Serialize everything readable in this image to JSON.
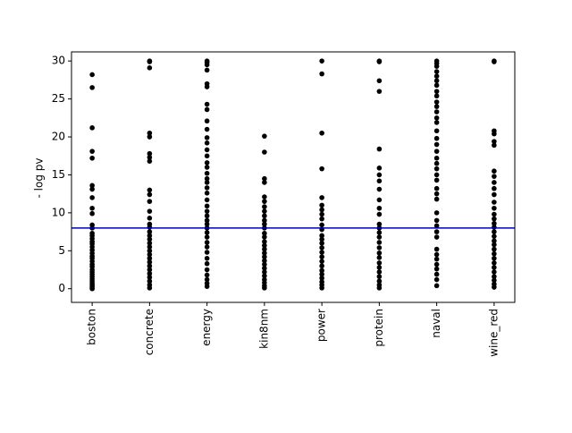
{
  "chart_data": {
    "type": "strip",
    "ylabel": "- log pv",
    "categories": [
      "boston",
      "concrete",
      "energy",
      "kin8nm",
      "power",
      "protein",
      "naval",
      "wine_red"
    ],
    "values": [
      [
        28.2,
        26.5,
        21.2,
        18.1,
        17.2,
        13.6,
        13.1,
        12.0,
        10.6,
        9.9,
        8.4,
        8.0,
        7.3,
        7.0,
        6.6,
        6.2,
        5.9,
        5.5,
        5.1,
        4.7,
        4.3,
        4.0,
        3.6,
        3.2,
        2.9,
        2.5,
        2.2,
        1.9,
        1.6,
        1.3,
        1.0,
        0.7,
        0.5,
        0.3,
        0.1,
        0.0
      ],
      [
        30,
        29.9,
        29.1,
        20.5,
        20.0,
        17.8,
        17.3,
        16.8,
        13.0,
        12.4,
        11.5,
        10.2,
        9.3,
        8.5,
        8.1,
        7.5,
        7.0,
        6.5,
        6.0,
        5.5,
        5.0,
        4.5,
        4.0,
        3.5,
        3.0,
        2.5,
        2.0,
        1.5,
        1.0,
        0.5,
        0.1
      ],
      [
        30,
        29.8,
        29.5,
        28.8,
        27.0,
        26.6,
        24.3,
        23.6,
        22.1,
        21.0,
        19.9,
        19.2,
        18.3,
        17.5,
        16.6,
        16.0,
        15.2,
        14.5,
        14.0,
        13.3,
        12.6,
        11.7,
        10.9,
        10.2,
        9.6,
        9.0,
        8.5,
        8.0,
        7.4,
        6.8,
        6.1,
        5.5,
        4.8,
        4.0,
        3.3,
        2.5,
        1.8,
        1.2,
        0.7,
        0.3
      ],
      [
        20.1,
        18.0,
        14.5,
        14.0,
        12.1,
        11.5,
        10.8,
        10.2,
        9.6,
        9.0,
        8.5,
        8.0,
        7.3,
        6.8,
        6.2,
        5.7,
        5.2,
        4.7,
        4.2,
        3.7,
        3.2,
        2.7,
        2.2,
        1.7,
        1.2,
        0.8,
        0.4,
        0.1
      ],
      [
        30.0,
        28.3,
        20.5,
        15.8,
        12.0,
        11.0,
        10.4,
        9.8,
        9.2,
        8.4,
        7.8,
        7.0,
        6.5,
        6.0,
        5.4,
        4.8,
        4.2,
        3.6,
        3.0,
        2.4,
        1.9,
        1.4,
        0.9,
        0.5,
        0.1
      ],
      [
        30,
        29.9,
        27.4,
        26.0,
        18.4,
        15.9,
        15.0,
        14.2,
        13.1,
        11.7,
        10.6,
        9.8,
        8.5,
        8.0,
        7.4,
        6.8,
        6.1,
        5.4,
        4.7,
        4.1,
        3.4,
        2.8,
        2.2,
        1.6,
        1.0,
        0.5,
        0.1
      ],
      [
        30,
        29.7,
        29.3,
        28.6,
        28.0,
        27.4,
        26.8,
        26.0,
        25.4,
        24.6,
        24.0,
        23.3,
        22.5,
        21.9,
        20.8,
        19.8,
        19.0,
        18.1,
        17.2,
        16.5,
        15.8,
        15.0,
        14.3,
        13.2,
        12.5,
        11.8,
        10.0,
        9.0,
        8.3,
        7.5,
        6.8,
        5.2,
        4.5,
        3.9,
        3.2,
        2.6,
        1.9,
        1.2,
        0.4
      ],
      [
        30,
        29.9,
        20.8,
        20.4,
        19.4,
        18.9,
        15.5,
        14.8,
        14.0,
        13.2,
        12.4,
        11.4,
        10.6,
        9.8,
        9.2,
        8.6,
        8.1,
        7.5,
        6.9,
        6.3,
        5.8,
        5.2,
        4.6,
        4.0,
        3.4,
        2.8,
        2.2,
        1.6,
        1.1,
        0.6,
        0.2
      ]
    ],
    "color": "#000000",
    "hline": {
      "value": 8,
      "color": "#0000b0"
    },
    "xlim": [
      -0.36,
      7.36
    ],
    "ylim": [
      -1.8,
      31.2
    ],
    "yticks": [
      0,
      5,
      10,
      15,
      20,
      25,
      30
    ]
  }
}
